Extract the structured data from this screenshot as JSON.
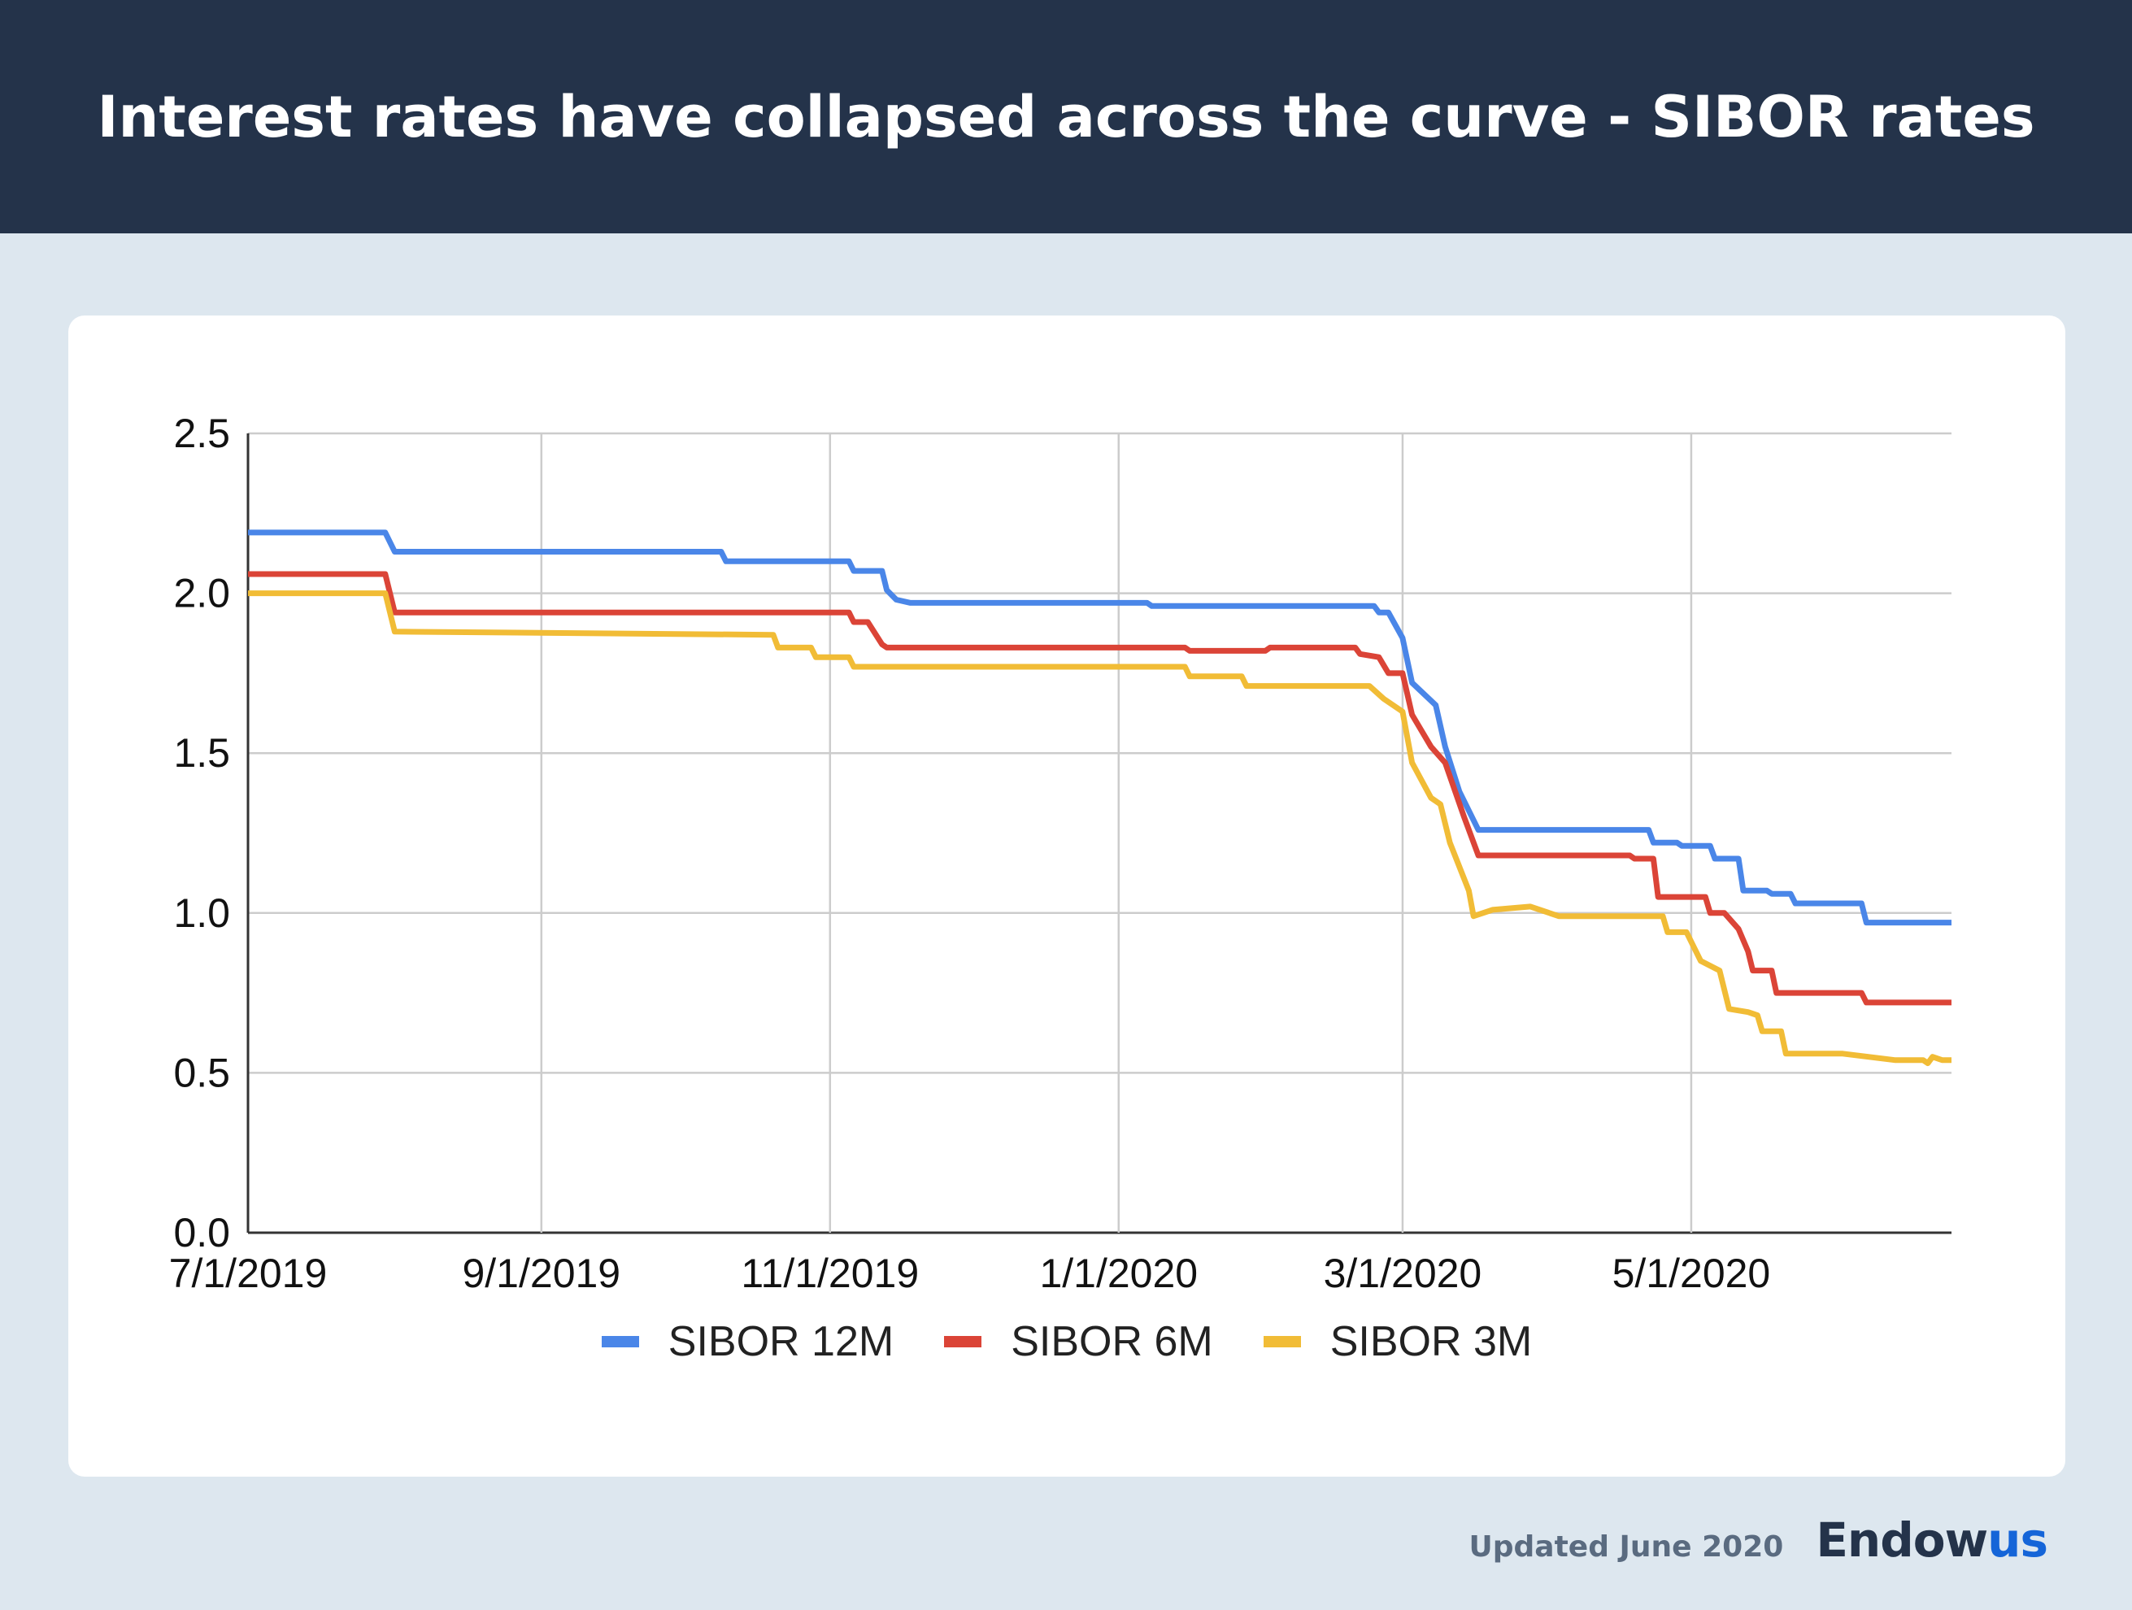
{
  "header": {
    "title": "Interest rates have collapsed across the curve - SIBOR rates"
  },
  "footer": {
    "updated": "Updated June 2020",
    "brand_main": "Endow",
    "brand_accent": "us"
  },
  "colors": {
    "header_bg": "#24334a",
    "page_bg": "#dde7ef",
    "brand_accent": "#1565d8"
  },
  "chart_data": {
    "type": "line",
    "title": "",
    "xlabel": "",
    "ylabel": "",
    "x_type": "date",
    "xlim": [
      "2019-07-01",
      "2020-06-25"
    ],
    "ylim": [
      0,
      2.5
    ],
    "yticks": [
      "0.0",
      "0.5",
      "1.0",
      "1.5",
      "2.0",
      "2.5"
    ],
    "xticks": [
      {
        "date": "2019-07-01",
        "label": "7/1/2019"
      },
      {
        "date": "2019-09-01",
        "label": "9/1/2019"
      },
      {
        "date": "2019-11-01",
        "label": "11/1/2019"
      },
      {
        "date": "2020-01-01",
        "label": "1/1/2020"
      },
      {
        "date": "2020-03-01",
        "label": "3/1/2020"
      },
      {
        "date": "2020-05-01",
        "label": "5/1/2020"
      }
    ],
    "grid": true,
    "legend_position": "bottom",
    "series": [
      {
        "name": "SIBOR 12M",
        "color": "#4a86e8",
        "points": [
          [
            "2019-07-01",
            2.19
          ],
          [
            "2019-07-30",
            2.19
          ],
          [
            "2019-08-01",
            2.13
          ],
          [
            "2019-10-09",
            2.13
          ],
          [
            "2019-10-10",
            2.1
          ],
          [
            "2019-11-05",
            2.1
          ],
          [
            "2019-11-06",
            2.07
          ],
          [
            "2019-11-12",
            2.07
          ],
          [
            "2019-11-13",
            2.01
          ],
          [
            "2019-11-15",
            1.98
          ],
          [
            "2019-11-18",
            1.97
          ],
          [
            "2020-01-07",
            1.97
          ],
          [
            "2020-01-08",
            1.96
          ],
          [
            "2020-02-24",
            1.96
          ],
          [
            "2020-02-25",
            1.94
          ],
          [
            "2020-02-27",
            1.94
          ],
          [
            "2020-03-01",
            1.86
          ],
          [
            "2020-03-03",
            1.72
          ],
          [
            "2020-03-08",
            1.65
          ],
          [
            "2020-03-10",
            1.52
          ],
          [
            "2020-03-13",
            1.38
          ],
          [
            "2020-03-17",
            1.26
          ],
          [
            "2020-04-22",
            1.26
          ],
          [
            "2020-04-23",
            1.22
          ],
          [
            "2020-04-28",
            1.22
          ],
          [
            "2020-04-29",
            1.21
          ],
          [
            "2020-05-05",
            1.21
          ],
          [
            "2020-05-06",
            1.17
          ],
          [
            "2020-05-11",
            1.17
          ],
          [
            "2020-05-12",
            1.07
          ],
          [
            "2020-05-17",
            1.07
          ],
          [
            "2020-05-18",
            1.06
          ],
          [
            "2020-05-22",
            1.06
          ],
          [
            "2020-05-23",
            1.03
          ],
          [
            "2020-06-06",
            1.03
          ],
          [
            "2020-06-07",
            0.97
          ],
          [
            "2020-06-25",
            0.97
          ]
        ]
      },
      {
        "name": "SIBOR 6M",
        "color": "#db4437",
        "points": [
          [
            "2019-07-01",
            2.06
          ],
          [
            "2019-07-30",
            2.06
          ],
          [
            "2019-08-01",
            1.94
          ],
          [
            "2019-11-05",
            1.94
          ],
          [
            "2019-11-06",
            1.91
          ],
          [
            "2019-11-09",
            1.91
          ],
          [
            "2019-11-12",
            1.84
          ],
          [
            "2019-11-13",
            1.83
          ],
          [
            "2020-01-15",
            1.83
          ],
          [
            "2020-01-16",
            1.82
          ],
          [
            "2020-02-01",
            1.82
          ],
          [
            "2020-02-02",
            1.83
          ],
          [
            "2020-02-20",
            1.83
          ],
          [
            "2020-02-21",
            1.81
          ],
          [
            "2020-02-25",
            1.8
          ],
          [
            "2020-02-27",
            1.75
          ],
          [
            "2020-03-01",
            1.75
          ],
          [
            "2020-03-03",
            1.62
          ],
          [
            "2020-03-07",
            1.52
          ],
          [
            "2020-03-10",
            1.47
          ],
          [
            "2020-03-14",
            1.3
          ],
          [
            "2020-03-17",
            1.18
          ],
          [
            "2020-04-18",
            1.18
          ],
          [
            "2020-04-19",
            1.17
          ],
          [
            "2020-04-23",
            1.17
          ],
          [
            "2020-04-24",
            1.05
          ],
          [
            "2020-05-04",
            1.05
          ],
          [
            "2020-05-05",
            1.0
          ],
          [
            "2020-05-08",
            1.0
          ],
          [
            "2020-05-11",
            0.95
          ],
          [
            "2020-05-13",
            0.88
          ],
          [
            "2020-05-14",
            0.82
          ],
          [
            "2020-05-18",
            0.82
          ],
          [
            "2020-05-19",
            0.75
          ],
          [
            "2020-06-06",
            0.75
          ],
          [
            "2020-06-07",
            0.72
          ],
          [
            "2020-06-25",
            0.72
          ]
        ]
      },
      {
        "name": "SIBOR 3M",
        "color": "#f1bc36",
        "points": [
          [
            "2019-07-01",
            2.0
          ],
          [
            "2019-07-30",
            2.0
          ],
          [
            "2019-08-01",
            1.88
          ],
          [
            "2019-10-20",
            1.87
          ],
          [
            "2019-10-21",
            1.83
          ],
          [
            "2019-10-28",
            1.83
          ],
          [
            "2019-10-29",
            1.8
          ],
          [
            "2019-11-05",
            1.8
          ],
          [
            "2019-11-06",
            1.77
          ],
          [
            "2020-01-15",
            1.77
          ],
          [
            "2020-01-16",
            1.74
          ],
          [
            "2020-01-27",
            1.74
          ],
          [
            "2020-01-28",
            1.71
          ],
          [
            "2020-02-23",
            1.71
          ],
          [
            "2020-02-26",
            1.67
          ],
          [
            "2020-03-01",
            1.63
          ],
          [
            "2020-03-03",
            1.47
          ],
          [
            "2020-03-07",
            1.36
          ],
          [
            "2020-03-09",
            1.34
          ],
          [
            "2020-03-11",
            1.22
          ],
          [
            "2020-03-15",
            1.07
          ],
          [
            "2020-03-16",
            0.99
          ],
          [
            "2020-03-20",
            1.01
          ],
          [
            "2020-03-28",
            1.02
          ],
          [
            "2020-04-03",
            0.99
          ],
          [
            "2020-04-10",
            0.99
          ],
          [
            "2020-04-25",
            0.99
          ],
          [
            "2020-04-26",
            0.94
          ],
          [
            "2020-04-30",
            0.94
          ],
          [
            "2020-05-03",
            0.85
          ],
          [
            "2020-05-07",
            0.82
          ],
          [
            "2020-05-09",
            0.7
          ],
          [
            "2020-05-13",
            0.69
          ],
          [
            "2020-05-15",
            0.68
          ],
          [
            "2020-05-16",
            0.63
          ],
          [
            "2020-05-20",
            0.63
          ],
          [
            "2020-05-21",
            0.56
          ],
          [
            "2020-06-01",
            0.56
          ],
          [
            "2020-06-02",
            0.56
          ],
          [
            "2020-06-13",
            0.54
          ],
          [
            "2020-06-19",
            0.54
          ],
          [
            "2020-06-20",
            0.53
          ],
          [
            "2020-06-21",
            0.55
          ],
          [
            "2020-06-23",
            0.54
          ],
          [
            "2020-06-25",
            0.54
          ]
        ]
      }
    ]
  }
}
